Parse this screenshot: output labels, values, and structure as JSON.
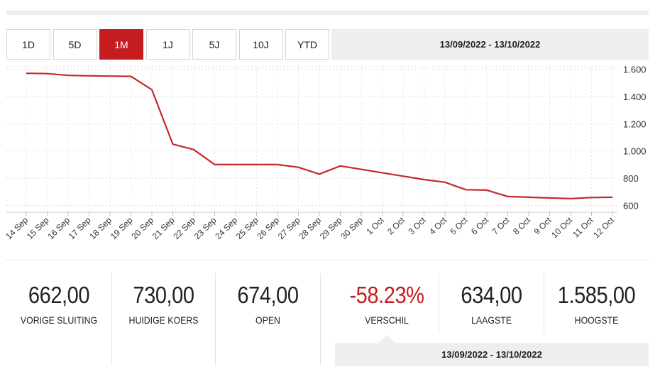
{
  "range_tabs": [
    {
      "label": "1D",
      "active": false
    },
    {
      "label": "5D",
      "active": false
    },
    {
      "label": "1M",
      "active": true
    },
    {
      "label": "1J",
      "active": false
    },
    {
      "label": "5J",
      "active": false
    },
    {
      "label": "10J",
      "active": false
    },
    {
      "label": "YTD",
      "active": false
    }
  ],
  "date_range": "13/09/2022 - 13/10/2022",
  "colors": {
    "accent": "#c51d1f",
    "line": "#c62828",
    "panel": "#eeeeee"
  },
  "chart_data": {
    "type": "line",
    "categories": [
      "14 Sep",
      "15 Sep",
      "16 Sep",
      "17 Sep",
      "18 Sep",
      "19 Sep",
      "20 Sep",
      "21 Sep",
      "22 Sep",
      "23 Sep",
      "24 Sep",
      "25 Sep",
      "26 Sep",
      "27 Sep",
      "28 Sep",
      "29 Sep",
      "30 Sep",
      "1 Oct",
      "2 Oct",
      "3 Oct",
      "4 Oct",
      "5 Oct",
      "6 Oct",
      "7 Oct",
      "8 Oct",
      "9 Oct",
      "10 Oct",
      "11 Oct",
      "12 Oct"
    ],
    "values": [
      1570,
      1568,
      1555,
      1552,
      1550,
      1548,
      1450,
      1050,
      1010,
      900,
      900,
      900,
      900,
      880,
      830,
      890,
      865,
      840,
      815,
      790,
      770,
      715,
      712,
      665,
      660,
      655,
      650,
      658,
      660
    ],
    "ylim": [
      550,
      1650
    ],
    "yticks": [
      600,
      800,
      1000,
      1200,
      1400,
      1600
    ],
    "ytick_labels": [
      "600",
      "800",
      "1.000",
      "1.200",
      "1.400",
      "1.600"
    ],
    "grid": true,
    "y_axis_position": "right"
  },
  "stats": [
    {
      "value": "662,00",
      "label": "VORIGE SLUITING"
    },
    {
      "value": "730,00",
      "label": "HUIDIGE KOERS"
    },
    {
      "value": "674,00",
      "label": "OPEN"
    },
    {
      "value": "-58.23%",
      "label": "VERSCHIL"
    },
    {
      "value": "634,00",
      "label": "LAAGSTE"
    },
    {
      "value": "1.585,00",
      "label": "HOOGSTE"
    }
  ]
}
